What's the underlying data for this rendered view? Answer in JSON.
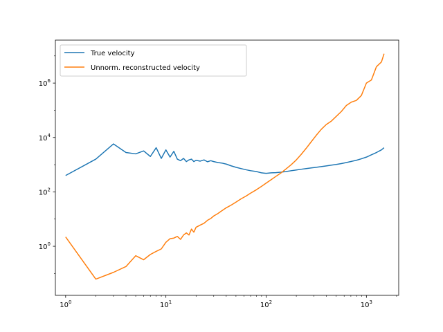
{
  "chart_data": {
    "type": "line",
    "title": "",
    "xlabel": "",
    "ylabel": "",
    "xscale": "log",
    "yscale": "log",
    "xlim": [
      0.79,
      2100
    ],
    "ylim": [
      0.0157,
      38000000.0
    ],
    "grid": false,
    "legend_position": "upper left",
    "x_ticks": [
      {
        "value": 1,
        "base": "10",
        "exp": "0"
      },
      {
        "value": 10,
        "base": "10",
        "exp": "1"
      },
      {
        "value": 100,
        "base": "10",
        "exp": "2"
      },
      {
        "value": 1000,
        "base": "10",
        "exp": "3"
      }
    ],
    "y_ticks": [
      {
        "value": 1,
        "base": "10",
        "exp": "0"
      },
      {
        "value": 100,
        "base": "10",
        "exp": "2"
      },
      {
        "value": 10000,
        "base": "10",
        "exp": "4"
      },
      {
        "value": 1000000,
        "base": "10",
        "exp": "6"
      }
    ],
    "series": [
      {
        "name": "True velocity",
        "color": "#1f77b4",
        "x": [
          1,
          2,
          3,
          4,
          5,
          6,
          7,
          8,
          9,
          10,
          11,
          12,
          13,
          14,
          15,
          16,
          17,
          18,
          19,
          20,
          22,
          24,
          26,
          28,
          30,
          33,
          36,
          40,
          45,
          50,
          56,
          63,
          70,
          80,
          90,
          100,
          112,
          125,
          141,
          158,
          178,
          200,
          224,
          251,
          282,
          316,
          355,
          398,
          447,
          501,
          562,
          631,
          708,
          794,
          891,
          1000,
          1122,
          1259,
          1413,
          1500
        ],
        "y": [
          400,
          1600,
          5800,
          2800,
          2500,
          3200,
          2000,
          4200,
          1700,
          3500,
          1900,
          3100,
          1600,
          1400,
          1700,
          1300,
          1500,
          1600,
          1300,
          1450,
          1350,
          1500,
          1280,
          1400,
          1300,
          1200,
          1150,
          1050,
          900,
          800,
          720,
          650,
          600,
          560,
          500,
          480,
          500,
          510,
          530,
          560,
          600,
          640,
          680,
          720,
          760,
          800,
          850,
          900,
          960,
          1020,
          1100,
          1200,
          1320,
          1450,
          1650,
          1900,
          2300,
          2800,
          3500,
          4200
        ]
      },
      {
        "name": "Unnorm. reconstructed velocity",
        "color": "#ff7f0e",
        "x": [
          1,
          2,
          3,
          4,
          5,
          6,
          7,
          8,
          9,
          10,
          11,
          12,
          13,
          14,
          15,
          16,
          17,
          18,
          19,
          20,
          22,
          24,
          26,
          28,
          30,
          33,
          36,
          40,
          45,
          50,
          56,
          63,
          70,
          80,
          90,
          100,
          112,
          125,
          141,
          158,
          178,
          200,
          224,
          251,
          282,
          316,
          355,
          398,
          447,
          501,
          562,
          631,
          708,
          794,
          891,
          1000,
          1122,
          1259,
          1413,
          1500
        ],
        "y": [
          2.2,
          0.062,
          0.11,
          0.18,
          0.45,
          0.32,
          0.5,
          0.65,
          0.8,
          1.4,
          1.9,
          2.0,
          2.3,
          1.8,
          2.6,
          3.1,
          2.6,
          4.3,
          3.3,
          5.0,
          6.0,
          7.0,
          9.0,
          10.5,
          13,
          16,
          20,
          26,
          33,
          42,
          55,
          70,
          90,
          120,
          160,
          210,
          280,
          370,
          500,
          700,
          1000,
          1500,
          2400,
          4000,
          7000,
          12000,
          20000,
          30000,
          40000,
          60000,
          90000,
          150000,
          200000,
          230000,
          350000,
          1000000,
          1300000,
          4000000,
          6000000,
          12000000
        ]
      }
    ]
  }
}
